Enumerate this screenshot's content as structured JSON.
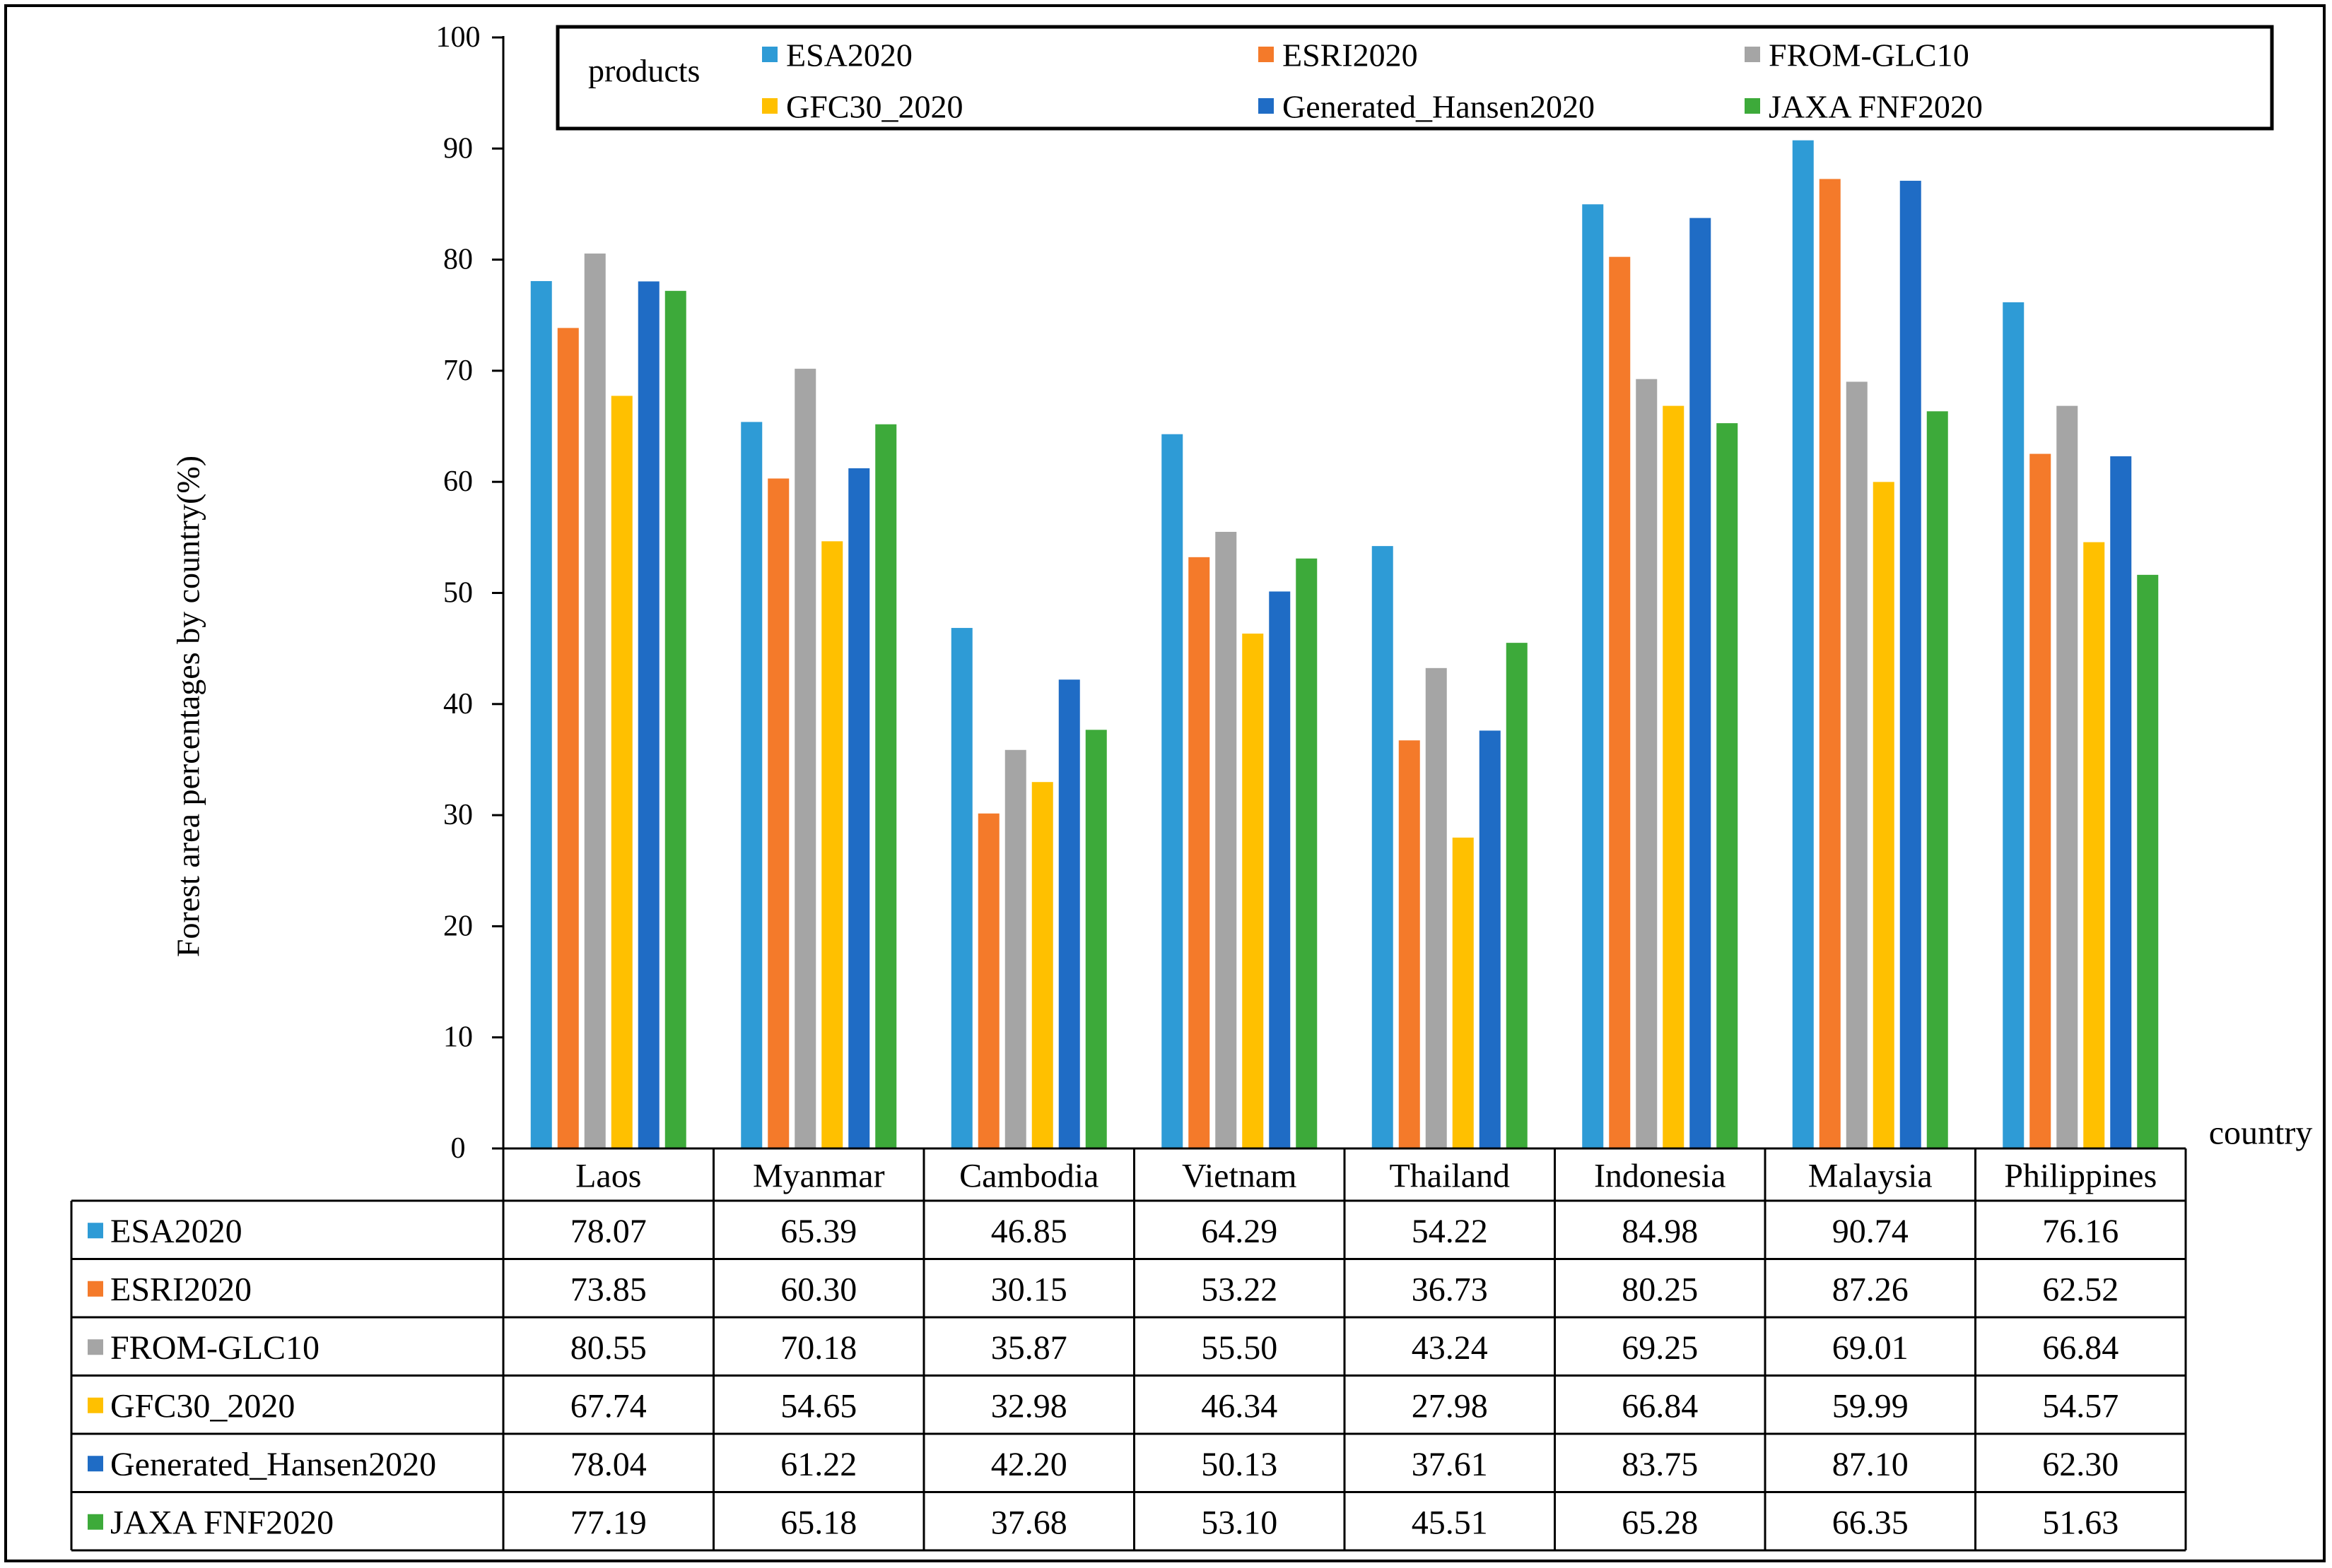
{
  "chart_data": {
    "type": "bar",
    "title": "",
    "xlabel": "country",
    "ylabel": "Forest area percentages by country(%)",
    "ylim": [
      0,
      100
    ],
    "yticks": [
      0,
      10,
      20,
      30,
      40,
      50,
      60,
      70,
      80,
      90,
      100
    ],
    "legend_title": "products",
    "legend_position": "top",
    "categories": [
      "Laos",
      "Myanmar",
      "Cambodia",
      "Vietnam",
      "Thailand",
      "Indonesia",
      "Malaysia",
      "Philippines"
    ],
    "series": [
      {
        "name": "ESA2020",
        "color": "#2E9BD6",
        "values": [
          78.07,
          65.39,
          46.85,
          64.29,
          54.22,
          84.98,
          90.74,
          76.16
        ],
        "labels": [
          "78.07",
          "65.39",
          "46.85",
          "64.29",
          "54.22",
          "84.98",
          "90.74",
          "76.16"
        ]
      },
      {
        "name": "ESRI2020",
        "color": "#F47A2A",
        "values": [
          73.85,
          60.3,
          30.15,
          53.22,
          36.73,
          80.25,
          87.26,
          62.52
        ],
        "labels": [
          "73.85",
          "60.30",
          "30.15",
          "53.22",
          "36.73",
          "80.25",
          "87.26",
          "62.52"
        ]
      },
      {
        "name": "FROM-GLC10",
        "color": "#A5A5A5",
        "values": [
          80.55,
          70.18,
          35.87,
          55.5,
          43.24,
          69.25,
          69.01,
          66.84
        ],
        "labels": [
          "80.55",
          "70.18",
          "35.87",
          "55.50",
          "43.24",
          "69.25",
          "69.01",
          "66.84"
        ]
      },
      {
        "name": "GFC30_2020",
        "color": "#FFC000",
        "values": [
          67.74,
          54.65,
          32.98,
          46.34,
          27.98,
          66.84,
          59.99,
          54.57
        ],
        "labels": [
          "67.74",
          "54.65",
          "32.98",
          "46.34",
          "27.98",
          "66.84",
          "59.99",
          "54.57"
        ]
      },
      {
        "name": "Generated_Hansen2020",
        "color": "#1F6CC5",
        "values": [
          78.04,
          61.22,
          42.2,
          50.13,
          37.61,
          83.75,
          87.1,
          62.3
        ],
        "labels": [
          "78.04",
          "61.22",
          "42.20",
          "50.13",
          "37.61",
          "83.75",
          "87.10",
          "62.30"
        ]
      },
      {
        "name": "JAXA FNF2020",
        "color": "#3DAA3A",
        "values": [
          77.19,
          65.18,
          37.68,
          53.1,
          45.51,
          65.28,
          66.35,
          51.63
        ],
        "labels": [
          "77.19",
          "65.18",
          "37.68",
          "53.10",
          "45.51",
          "65.28",
          "66.35",
          "51.63"
        ]
      }
    ]
  }
}
